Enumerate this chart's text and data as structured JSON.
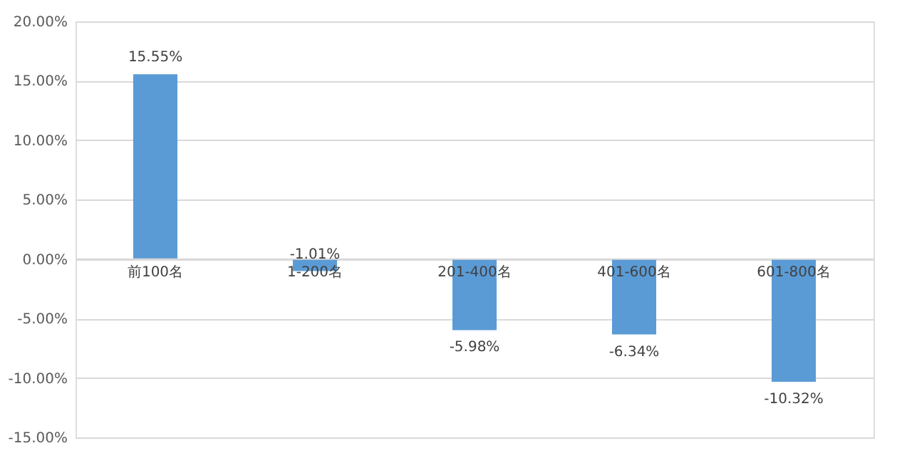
{
  "chart_data": {
    "type": "bar",
    "categories": [
      "前100名",
      "1-200名",
      "201-400名",
      "401-600名",
      "601-800名"
    ],
    "values": [
      15.55,
      -1.01,
      -5.98,
      -6.34,
      -10.32
    ],
    "value_labels": [
      "15.55%",
      "-1.01%",
      "-5.98%",
      "-6.34%",
      "-10.32%"
    ],
    "color": "#5b9bd5",
    "ylim": [
      -15,
      20
    ],
    "yticks": [
      {
        "value": -15,
        "label": "-15.00%"
      },
      {
        "value": -10,
        "label": "-10.00%"
      },
      {
        "value": -5,
        "label": "-5.00%"
      },
      {
        "value": 0,
        "label": "0.00%"
      },
      {
        "value": 5,
        "label": "5.00%"
      },
      {
        "value": 10,
        "label": "10.00%"
      },
      {
        "value": 15,
        "label": "15.00%"
      },
      {
        "value": 20,
        "label": "20.00%"
      }
    ],
    "grid": "y"
  }
}
